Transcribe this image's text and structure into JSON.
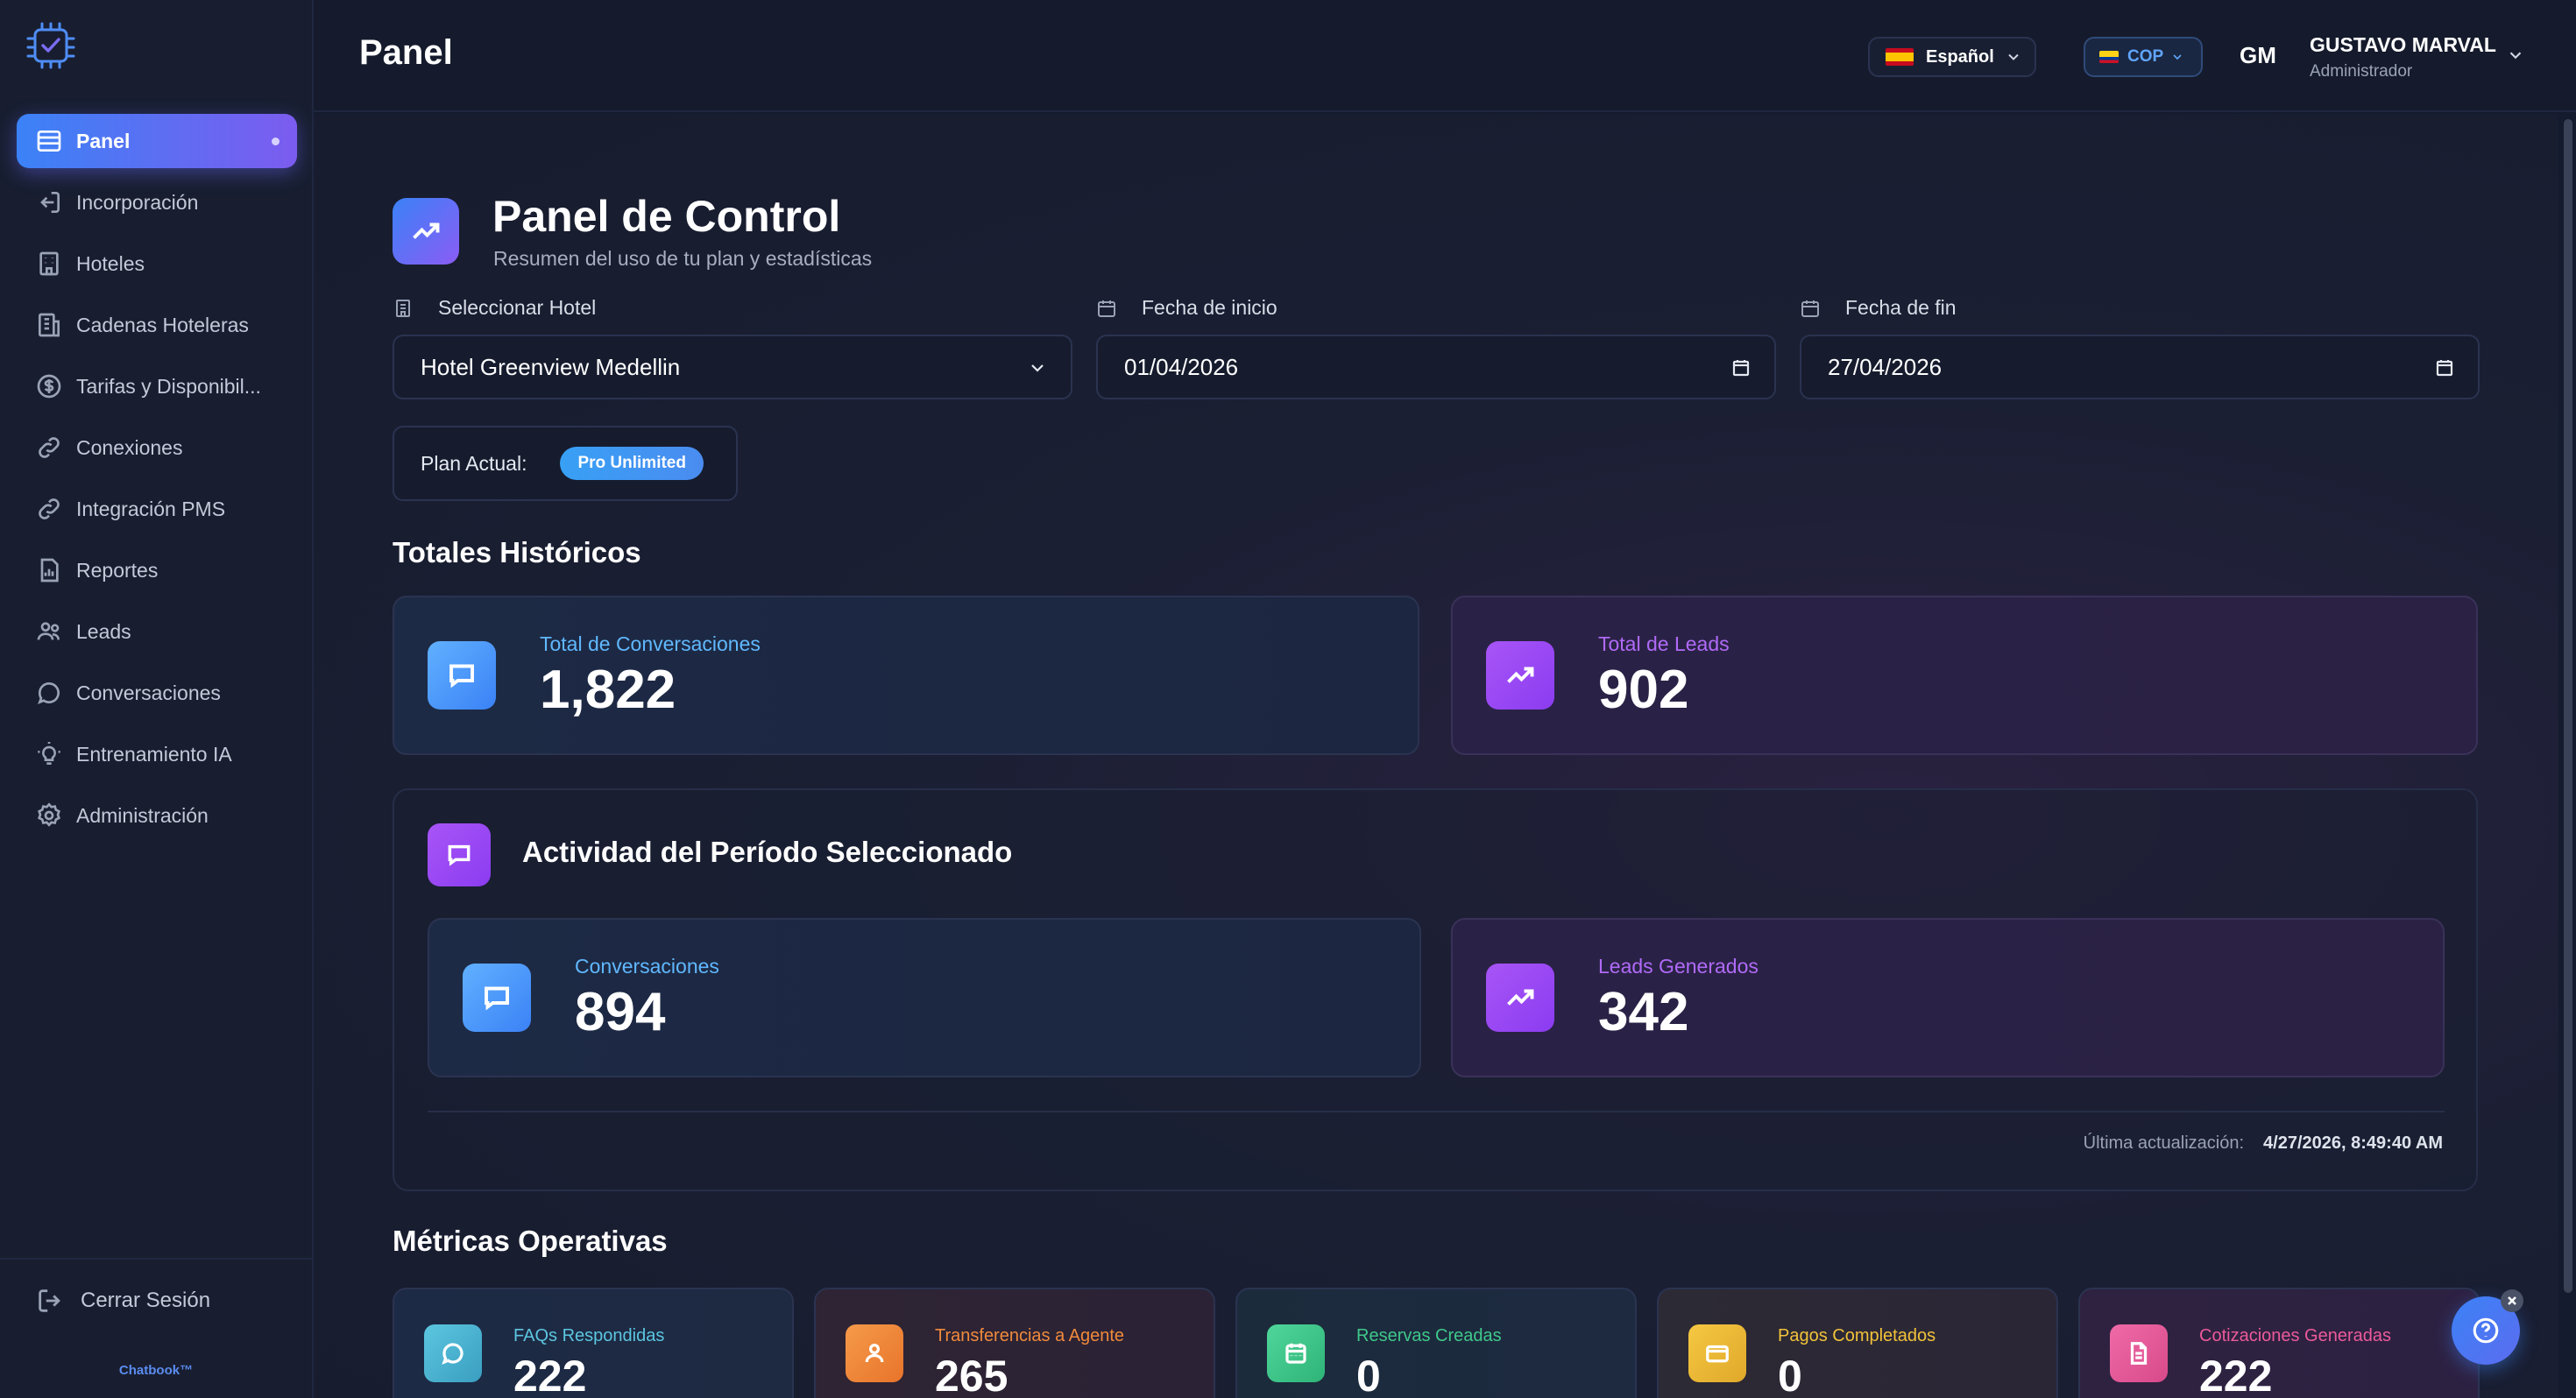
{
  "sidebar": {
    "items": [
      {
        "label": "Panel",
        "icon": "layout-list-icon",
        "active": true
      },
      {
        "label": "Incorporación",
        "icon": "login-icon"
      },
      {
        "label": "Hoteles",
        "icon": "building-icon"
      },
      {
        "label": "Cadenas Hoteleras",
        "icon": "buildings-icon"
      },
      {
        "label": "Tarifas y Disponibil...",
        "icon": "dollar-circle-icon"
      },
      {
        "label": "Conexiones",
        "icon": "link-icon"
      },
      {
        "label": "Integración PMS",
        "icon": "link-icon"
      },
      {
        "label": "Reportes",
        "icon": "report-chart-icon"
      },
      {
        "label": "Leads",
        "icon": "users-icon"
      },
      {
        "label": "Conversaciones",
        "icon": "chat-bubble-icon"
      },
      {
        "label": "Entrenamiento IA",
        "icon": "lightbulb-icon"
      },
      {
        "label": "Administración",
        "icon": "gear-icon"
      }
    ],
    "logout_label": "Cerrar Sesión",
    "brand": "Chatbook™"
  },
  "topbar": {
    "title": "Panel",
    "language": "Español",
    "currency": "COP",
    "avatar_initials": "GM",
    "user_name": "GUSTAVO MARVAL",
    "user_role": "Administrador"
  },
  "header": {
    "title": "Panel de Control",
    "subtitle": "Resumen del uso de tu plan y estadísticas"
  },
  "filters": {
    "hotel_label": "Seleccionar Hotel",
    "hotel_value": "Hotel Greenview Medellin",
    "start_label": "Fecha de inicio",
    "start_value": "01/04/2026",
    "end_label": "Fecha de fin",
    "end_value": "27/04/2026"
  },
  "plan": {
    "label": "Plan Actual:",
    "value": "Pro Unlimited"
  },
  "historic": {
    "title": "Totales Históricos",
    "conversations_label": "Total de Conversaciones",
    "conversations_value": "1,822",
    "leads_label": "Total de Leads",
    "leads_value": "902"
  },
  "activity": {
    "title": "Actividad del Período Seleccionado",
    "conversations_label": "Conversaciones",
    "conversations_value": "894",
    "leads_label": "Leads Generados",
    "leads_value": "342",
    "updated_label": "Última actualización:",
    "updated_value": "4/27/2026, 8:49:40 AM"
  },
  "metrics": {
    "title": "Métricas Operativas",
    "items": [
      {
        "label": "FAQs Respondidas",
        "value": "222",
        "color": "#5cc6e0"
      },
      {
        "label": "Transferencias a Agente",
        "value": "265",
        "color": "#f08a3c"
      },
      {
        "label": "Reservas Creadas",
        "value": "0",
        "color": "#3fc88a"
      },
      {
        "label": "Pagos Completados",
        "value": "0",
        "color": "#f2c23a"
      },
      {
        "label": "Cotizaciones Generadas",
        "value": "222",
        "color": "#ec5a9a"
      }
    ]
  },
  "colors": {
    "accent_blue": "#3b82f6",
    "accent_purple": "#8b5cf6",
    "background": "#151b2e"
  }
}
